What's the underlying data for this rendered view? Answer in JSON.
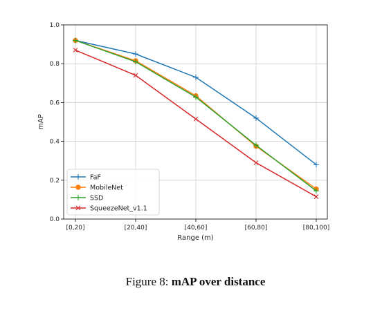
{
  "chart_data": {
    "type": "line",
    "categories": [
      "[0,20]",
      "[20,40]",
      "[40,60]",
      "[60,80]",
      "[80,100]"
    ],
    "series": [
      {
        "name": "FaF",
        "values": [
          0.92,
          0.85,
          0.73,
          0.52,
          0.28
        ],
        "color": "#1f77b4",
        "marker": "plus"
      },
      {
        "name": "MobileNet",
        "values": [
          0.92,
          0.815,
          0.635,
          0.375,
          0.155
        ],
        "color": "#ff7f0e",
        "marker": "circle"
      },
      {
        "name": "SSD",
        "values": [
          0.92,
          0.81,
          0.628,
          0.38,
          0.145
        ],
        "color": "#2ca02c",
        "marker": "plus"
      },
      {
        "name": "SqueezeNet_v1.1",
        "values": [
          0.87,
          0.74,
          0.515,
          0.29,
          0.115
        ],
        "color": "#d62728",
        "marker": "x"
      }
    ],
    "xlabel": "Range (m)",
    "ylabel": "mAP",
    "ylim": [
      0.0,
      1.0
    ],
    "yticks": [
      "0.0",
      "0.2",
      "0.4",
      "0.6",
      "0.8",
      "1.0"
    ],
    "grid": true,
    "legend": "lower-left"
  },
  "caption": {
    "prefix": "Figure 8: ",
    "title": "mAP over distance"
  }
}
